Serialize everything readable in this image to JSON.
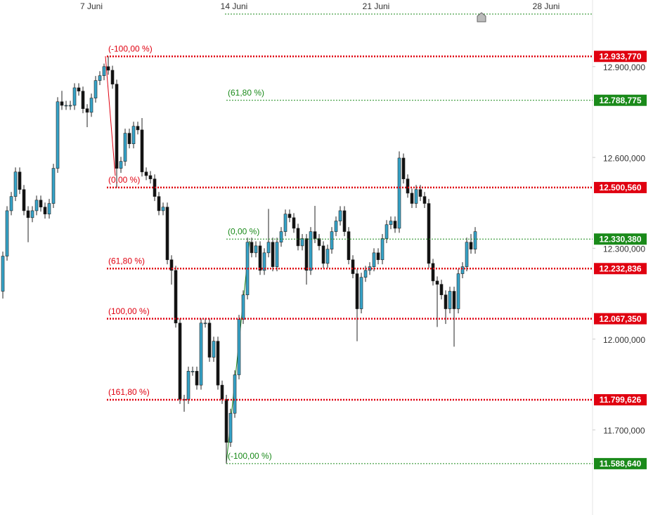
{
  "chart_data": {
    "type": "candlestick",
    "x": [
      0,
      1,
      2,
      3,
      4,
      5,
      6,
      7,
      8,
      9,
      10,
      11,
      12,
      13,
      14,
      15,
      16,
      17,
      18,
      19,
      20,
      21,
      22,
      23,
      24,
      25,
      26,
      27,
      28,
      29,
      30,
      31,
      32,
      33,
      34,
      35,
      36,
      37,
      38,
      39,
      40,
      41,
      42,
      43,
      44,
      45,
      46,
      47,
      48,
      49,
      50,
      51,
      52,
      53,
      54,
      55,
      56,
      57,
      58,
      59,
      60,
      61,
      62,
      63,
      64,
      65,
      66,
      67,
      68,
      69,
      70,
      71,
      72,
      73,
      74,
      75,
      76,
      77,
      78,
      79,
      80,
      81,
      82,
      83,
      84,
      85,
      86,
      87,
      88,
      89,
      90,
      91,
      92,
      93,
      94,
      95,
      96,
      97,
      98,
      99,
      100,
      101,
      102,
      103,
      104,
      105,
      106,
      107,
      108,
      109,
      110,
      111,
      112
    ],
    "open": [
      12158,
      12274,
      12424,
      12471,
      12552,
      12494,
      12424,
      12401,
      12424,
      12459,
      12436,
      12413,
      12448,
      12564,
      12784,
      12772,
      12772,
      12772,
      12830,
      12819,
      12761,
      12749,
      12796,
      12854,
      12870,
      12900,
      12888,
      12842,
      12564,
      12587,
      12680,
      12645,
      12703,
      12691,
      12552,
      12540,
      12529,
      12471,
      12424,
      12436,
      12262,
      12227,
      12053,
      11801,
      11801,
      11894,
      11894,
      11848,
      12053,
      12053,
      11940,
      11993,
      11848,
      11801,
      11659,
      11755,
      11882,
      12065,
      12146,
      12320,
      12285,
      12308,
      12227,
      12285,
      12320,
      12239,
      12320,
      12355,
      12413,
      12401,
      12366,
      12308,
      12332,
      12227,
      12355,
      12332,
      12308,
      12250,
      12297,
      12355,
      12390,
      12424,
      12355,
      12262,
      12216,
      12100,
      12204,
      12227,
      12239,
      12285,
      12262,
      12332,
      12378,
      12390,
      12366,
      12598,
      12529,
      12482,
      12448,
      12494,
      12471,
      12448,
      12250,
      12192,
      12181,
      12146,
      12100,
      12158,
      12100,
      12216,
      12239,
      12320,
      12297
    ],
    "high": [
      12289,
      12439,
      12486,
      12567,
      12567,
      12509,
      12439,
      12439,
      12474,
      12474,
      12451,
      12463,
      12579,
      12799,
      12820,
      12787,
      12787,
      12845,
      12845,
      12834,
      12776,
      12811,
      12869,
      12885,
      12910,
      12934,
      12903,
      12857,
      12602,
      12695,
      12695,
      12718,
      12718,
      12730,
      12567,
      12555,
      12544,
      12486,
      12451,
      12451,
      12277,
      12242,
      12068,
      11816,
      11909,
      11909,
      11909,
      12068,
      12068,
      12068,
      12008,
      12008,
      11863,
      11816,
      11770,
      11897,
      12080,
      12161,
      12335,
      12335,
      12323,
      12323,
      12300,
      12430,
      12335,
      12335,
      12370,
      12428,
      12428,
      12416,
      12381,
      12347,
      12347,
      12370,
      12440,
      12347,
      12323,
      12312,
      12370,
      12405,
      12439,
      12439,
      12370,
      12277,
      12231,
      12219,
      12242,
      12254,
      12300,
      12300,
      12347,
      12393,
      12405,
      12405,
      12620,
      12613,
      12544,
      12497,
      12509,
      12509,
      12486,
      12463,
      12265,
      12207,
      12196,
      12161,
      12173,
      12173,
      12231,
      12254,
      12335,
      12347,
      12370
    ],
    "low": [
      12134,
      12259,
      12409,
      12456,
      12479,
      12409,
      12320,
      12386,
      12409,
      12421,
      12398,
      12398,
      12433,
      12549,
      12757,
      12757,
      12757,
      12757,
      12804,
      12746,
      12700,
      12734,
      12781,
      12839,
      12855,
      12873,
      12827,
      12500,
      12549,
      12572,
      12630,
      12630,
      12676,
      12537,
      12525,
      12514,
      12456,
      12409,
      12409,
      12247,
      12180,
      12038,
      11786,
      11760,
      11786,
      11879,
      11833,
      11833,
      12038,
      11925,
      11925,
      11833,
      11786,
      11589,
      11644,
      11740,
      11867,
      12050,
      12131,
      12270,
      12270,
      12212,
      12212,
      12270,
      12224,
      12224,
      12305,
      12340,
      12386,
      12351,
      12293,
      12293,
      12180,
      12212,
      12317,
      12293,
      12235,
      12235,
      12282,
      12340,
      12375,
      12340,
      12247,
      12201,
      11993,
      12085,
      12189,
      12212,
      12224,
      12247,
      12247,
      12317,
      12363,
      12351,
      12351,
      12514,
      12467,
      12433,
      12433,
      12456,
      12433,
      12235,
      12177,
      12040,
      12131,
      12050,
      12085,
      11975,
      12085,
      12201,
      12224,
      12282,
      12282
    ],
    "close": [
      12274,
      12424,
      12471,
      12552,
      12494,
      12424,
      12401,
      12424,
      12459,
      12436,
      12413,
      12448,
      12564,
      12784,
      12772,
      12772,
      12772,
      12830,
      12819,
      12761,
      12749,
      12796,
      12854,
      12870,
      12900,
      12888,
      12842,
      12564,
      12587,
      12680,
      12645,
      12703,
      12691,
      12552,
      12540,
      12529,
      12471,
      12424,
      12436,
      12262,
      12227,
      12053,
      11801,
      11801,
      11894,
      11894,
      11848,
      12053,
      12053,
      11940,
      11993,
      11848,
      11801,
      11659,
      11755,
      11882,
      12065,
      12146,
      12320,
      12285,
      12308,
      12227,
      12285,
      12320,
      12239,
      12320,
      12355,
      12413,
      12401,
      12366,
      12308,
      12332,
      12227,
      12355,
      12332,
      12308,
      12250,
      12297,
      12355,
      12390,
      12424,
      12355,
      12262,
      12216,
      12100,
      12204,
      12227,
      12239,
      12285,
      12262,
      12332,
      12378,
      12390,
      12366,
      12598,
      12529,
      12482,
      12448,
      12494,
      12471,
      12448,
      12250,
      12192,
      12181,
      12146,
      12100,
      12158,
      12100,
      12216,
      12239,
      12320,
      12297,
      12355
    ],
    "up_color": "#35a3c8",
    "down_color": "#111111",
    "xlim": [
      -0.67,
      139.83
    ],
    "xticks": [
      {
        "value": 21,
        "label": "7 Juni"
      },
      {
        "value": 54.83,
        "label": "14 Juni"
      },
      {
        "value": 88.5,
        "label": "21 Juni"
      },
      {
        "value": 128.83,
        "label": "28 Juni"
      }
    ],
    "ylim": [
      11419,
      13120
    ],
    "yticks": [
      {
        "value": 12900,
        "label": "12.900,000"
      },
      {
        "value": 12600,
        "label": "12.600,000"
      },
      {
        "value": 12300,
        "label": "12.300,000"
      },
      {
        "value": 12000,
        "label": "12.000,000"
      },
      {
        "value": 11700,
        "label": "11.700,000"
      }
    ],
    "fibonacci": [
      {
        "color": "#e00010",
        "levels": [
          {
            "label": "(-100,00 %)",
            "value": 12933.77,
            "value_label": "12.933,770"
          },
          {
            "label": "(0,00 %)",
            "value": 12500.56,
            "value_label": "12.500,560"
          },
          {
            "label": "(61,80 %)",
            "value": 12232.836,
            "value_label": "12.232,836"
          },
          {
            "label": "(100,00 %)",
            "value": 12067.35,
            "value_label": "12.067,350"
          },
          {
            "label": "(161,80 %)",
            "value": 11799.626,
            "value_label": "11.799,626"
          }
        ]
      },
      {
        "color": "#1a8a1a",
        "levels": [
          {
            "label": "(61,80 %)",
            "value": 12788.775,
            "value_label": "12.788,775"
          },
          {
            "label": "(0,00 %)",
            "value": 12330.38,
            "value_label": "12.330,380"
          },
          {
            "label": "(-100,00 %)",
            "value": 11588.64,
            "value_label": "11.588,640"
          }
        ]
      }
    ]
  }
}
